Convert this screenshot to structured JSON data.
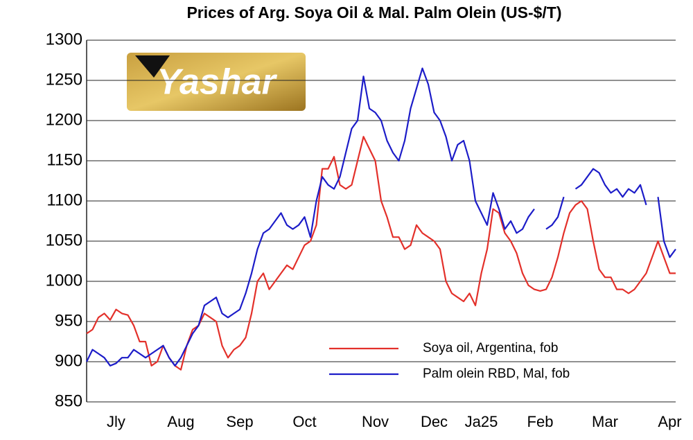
{
  "chart_data": {
    "type": "line",
    "title": "Prices of Arg. Soya Oil & Mal. Palm Olein (US-$/T)",
    "logo_text": "Yashar",
    "categories": [
      null,
      null,
      null,
      null,
      null,
      "Jly",
      null,
      null,
      null,
      null,
      null,
      null,
      null,
      null,
      null,
      null,
      "Aug",
      null,
      null,
      null,
      null,
      null,
      null,
      null,
      null,
      null,
      "Sep",
      null,
      null,
      null,
      null,
      null,
      null,
      null,
      null,
      null,
      null,
      "Oct",
      null,
      null,
      null,
      null,
      null,
      null,
      null,
      null,
      null,
      null,
      null,
      "Nov",
      null,
      null,
      null,
      null,
      null,
      null,
      null,
      null,
      null,
      "Dec",
      null,
      null,
      null,
      null,
      null,
      null,
      null,
      "Ja25",
      null,
      null,
      null,
      null,
      null,
      null,
      null,
      null,
      null,
      "Feb",
      null,
      null,
      null,
      null,
      null,
      null,
      null,
      null,
      null,
      null,
      "Mar",
      null,
      null,
      null,
      null,
      null,
      null,
      null,
      null,
      null,
      null,
      "Apr",
      null
    ],
    "series": [
      {
        "name": "Soya oil, Argentina, fob",
        "color": "#e3302a",
        "values": [
          935,
          940,
          955,
          960,
          952,
          965,
          960,
          958,
          945,
          925,
          925,
          895,
          900,
          920,
          905,
          895,
          890,
          920,
          940,
          945,
          960,
          955,
          950,
          920,
          905,
          915,
          920,
          930,
          960,
          1000,
          1010,
          990,
          1000,
          1010,
          1020,
          1015,
          1030,
          1045,
          1050,
          1070,
          1140,
          1140,
          1155,
          1120,
          1115,
          1120,
          1150,
          1180,
          1165,
          1150,
          1100,
          1080,
          1055,
          1055,
          1040,
          1045,
          1070,
          1060,
          1055,
          1050,
          1040,
          1000,
          985,
          980,
          975,
          985,
          970,
          1010,
          1040,
          1090,
          1085,
          1060,
          1050,
          1035,
          1010,
          995,
          990,
          988,
          990,
          1005,
          1030,
          1060,
          1085,
          1095,
          1100,
          1090,
          1050,
          1015,
          1005,
          1005,
          990,
          990,
          985,
          990,
          1000,
          1010,
          1030,
          1050,
          1030,
          1010,
          1010
        ]
      },
      {
        "name": "Palm olein RBD, Mal, fob",
        "color": "#1c1cc8",
        "values": [
          900,
          915,
          910,
          905,
          895,
          898,
          905,
          905,
          915,
          910,
          905,
          910,
          915,
          920,
          905,
          895,
          905,
          920,
          935,
          945,
          970,
          975,
          980,
          960,
          955,
          960,
          965,
          985,
          1010,
          1040,
          1060,
          1065,
          1075,
          1085,
          1070,
          1065,
          1070,
          1080,
          1055,
          1100,
          1130,
          1120,
          1115,
          1130,
          1160,
          1190,
          1200,
          1255,
          1215,
          1210,
          1200,
          1175,
          1160,
          1150,
          1175,
          1215,
          1240,
          1265,
          1245,
          1210,
          1200,
          1180,
          1150,
          1170,
          1175,
          1150,
          1100,
          1085,
          1070,
          1110,
          1090,
          1065,
          1075,
          1060,
          1065,
          1080,
          1090,
          null,
          1065,
          1070,
          1080,
          1105,
          null,
          1115,
          1120,
          1130,
          1140,
          1135,
          1120,
          1110,
          1115,
          1105,
          1115,
          1110,
          1120,
          1095,
          null,
          1105,
          1050,
          1030,
          1040
        ]
      }
    ],
    "ylim": [
      850,
      1300
    ],
    "yticks": [
      850,
      900,
      950,
      1000,
      1050,
      1100,
      1150,
      1200,
      1250,
      1300
    ],
    "grid": true,
    "legend": "lower right"
  }
}
